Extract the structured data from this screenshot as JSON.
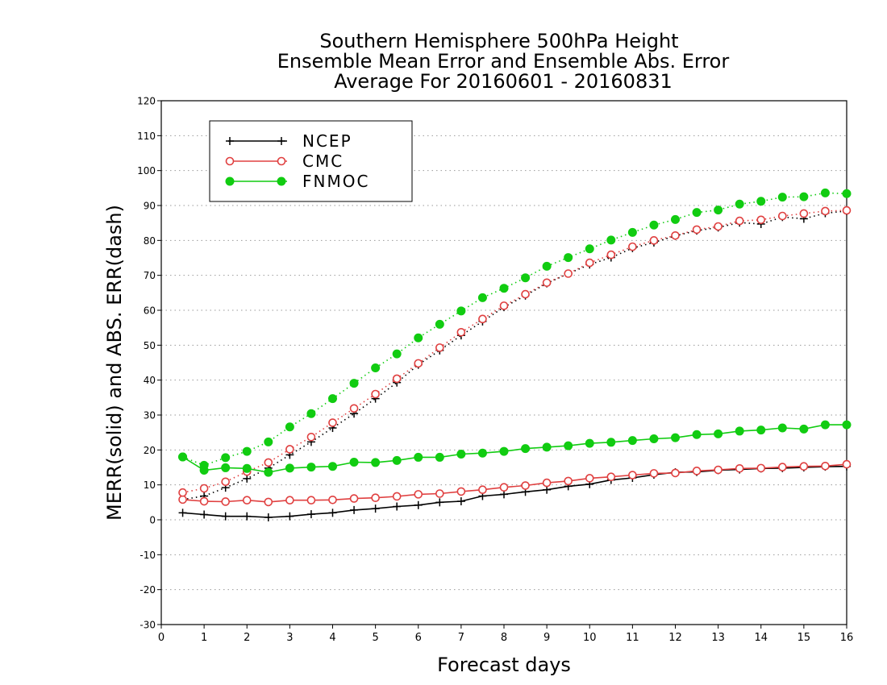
{
  "chart_data": {
    "type": "line",
    "title": [
      "Southern Hemisphere 500hPa Height",
      "Ensemble Mean Error and Ensemble Abs. Error",
      "Average For 20160601 - 20160831"
    ],
    "xlabel": "Forecast days",
    "ylabel": "MERR(solid) and ABS. ERR(dash)",
    "xlim": [
      0,
      16
    ],
    "ylim": [
      -30,
      120
    ],
    "x_ticks": [
      "0",
      "1",
      "2",
      "3",
      "4",
      "5",
      "6",
      "7",
      "8",
      "9",
      "10",
      "11",
      "12",
      "13",
      "14",
      "15",
      "16"
    ],
    "y_ticks": [
      "120",
      "110",
      "100",
      "90",
      "80",
      "70",
      "60",
      "50",
      "40",
      "30",
      "20",
      "10",
      "0",
      "-10",
      "-20",
      "-30"
    ],
    "grid": true,
    "legend_position": "top-left",
    "x": [
      0.5,
      1,
      1.5,
      2,
      2.5,
      3,
      3.5,
      4,
      4.5,
      5,
      5.5,
      6,
      6.5,
      7,
      7.5,
      8,
      8.5,
      9,
      9.5,
      10,
      10.5,
      11,
      11.5,
      12,
      12.5,
      13,
      13.5,
      14,
      14.5,
      15,
      15.5,
      16
    ],
    "series": [
      {
        "name": "NCEP",
        "color": "#000000",
        "marker": "plus",
        "merr": [
          2,
          1.5,
          1,
          1,
          0.7,
          1,
          1.6,
          2,
          2.8,
          3.2,
          3.8,
          4.2,
          5,
          5.3,
          6.8,
          7.3,
          8,
          8.6,
          9.6,
          10.2,
          11.4,
          12,
          12.9,
          13.6,
          13.7,
          14.2,
          14.4,
          14.7,
          14.8,
          15,
          15.2,
          15.3
        ],
        "abs_err": [
          5.8,
          6.8,
          9.2,
          11.8,
          14.8,
          18.6,
          22.3,
          26.3,
          30.4,
          34.7,
          39.3,
          44.4,
          48.5,
          52.8,
          56.8,
          60.9,
          64.2,
          67.7,
          70.5,
          73.1,
          75.1,
          77.8,
          79.4,
          81.3,
          82.8,
          83.7,
          85.1,
          84.7,
          86.7,
          86.2,
          87.8,
          88.4
        ]
      },
      {
        "name": "CMC",
        "color": "#e04040",
        "marker": "open-circle",
        "merr": [
          5.8,
          5.3,
          5.2,
          5.6,
          5.1,
          5.6,
          5.6,
          5.7,
          6.1,
          6.3,
          6.7,
          7.3,
          7.5,
          8.1,
          8.6,
          9.3,
          9.8,
          10.6,
          11.1,
          11.9,
          12.3,
          12.8,
          13.3,
          13.4,
          14,
          14.3,
          14.7,
          14.8,
          15.1,
          15.3,
          15.4,
          15.9
        ],
        "abs_err": [
          7.8,
          9,
          10.9,
          13.8,
          16.4,
          20.2,
          23.7,
          27.8,
          31.9,
          36,
          40.4,
          44.8,
          49.3,
          53.7,
          57.5,
          61.3,
          64.6,
          67.9,
          70.5,
          73.6,
          75.9,
          78.2,
          80,
          81.4,
          83.1,
          84,
          85.6,
          85.9,
          87,
          87.7,
          88.4,
          88.6
        ]
      },
      {
        "name": "FNMOC",
        "color": "#11cc11",
        "marker": "filled-circle",
        "merr": [
          18,
          14.2,
          14.9,
          14.7,
          13.6,
          14.8,
          15.1,
          15.3,
          16.5,
          16.4,
          17,
          17.9,
          17.9,
          18.8,
          19.1,
          19.6,
          20.4,
          20.8,
          21.2,
          21.9,
          22.2,
          22.7,
          23.2,
          23.5,
          24.4,
          24.6,
          25.4,
          25.7,
          26.3,
          26,
          27.2,
          27.2
        ],
        "abs_err": [
          18,
          15.6,
          17.8,
          19.6,
          22.3,
          26.6,
          30.4,
          34.7,
          39.1,
          43.5,
          47.5,
          52.1,
          56,
          59.8,
          63.6,
          66.3,
          69.3,
          72.6,
          75.1,
          77.6,
          80.1,
          82.3,
          84.4,
          86,
          88,
          88.7,
          90.4,
          91.2,
          92.4,
          92.5,
          93.6,
          93.4
        ]
      }
    ]
  }
}
